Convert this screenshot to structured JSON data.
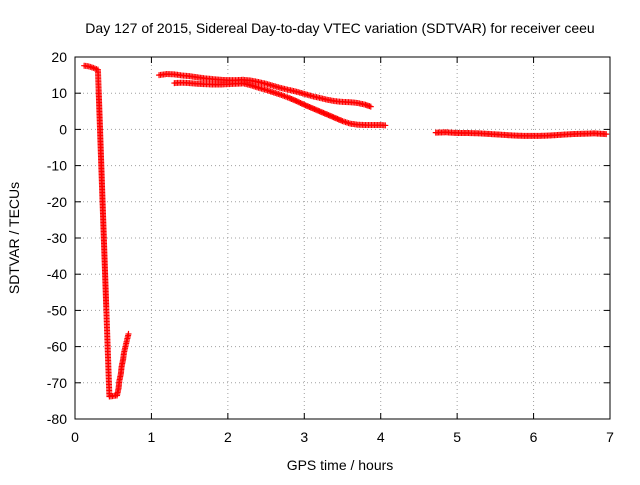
{
  "chart_data": {
    "type": "scatter",
    "title": "Day 127 of 2015, Sidereal Day-to-day VTEC variation (SDTVAR) for receiver ceeu",
    "xlabel": "GPS time / hours",
    "ylabel": "SDTVAR / TECUs",
    "xlim": [
      0,
      7
    ],
    "ylim": [
      -80,
      20
    ],
    "xticks": [
      0,
      1,
      2,
      3,
      4,
      5,
      6,
      7
    ],
    "yticks": [
      -80,
      -70,
      -60,
      -50,
      -40,
      -30,
      -20,
      -10,
      0,
      10,
      20
    ],
    "grid": true,
    "marker": "+",
    "color": "#ff0000",
    "series": [
      {
        "values": [
          [
            0.12,
            17.6
          ],
          [
            0.18,
            17.4
          ],
          [
            0.24,
            17.0
          ],
          [
            0.3,
            16.5
          ],
          [
            0.45,
            -73.8
          ],
          [
            0.55,
            -73.5
          ],
          [
            0.57,
            -71.5
          ],
          [
            0.58,
            -69.5
          ],
          [
            0.6,
            -67.5
          ],
          [
            0.61,
            -65.5
          ],
          [
            0.63,
            -63.5
          ],
          [
            0.64,
            -61.8
          ],
          [
            0.66,
            -60.0
          ],
          [
            0.68,
            -58.2
          ],
          [
            0.7,
            -56.5
          ],
          [
            1.1,
            15.0
          ],
          [
            1.2,
            15.3
          ],
          [
            1.3,
            15.2
          ],
          [
            1.4,
            14.9
          ],
          [
            1.5,
            14.7
          ],
          [
            1.6,
            14.4
          ],
          [
            1.7,
            14.1
          ],
          [
            1.8,
            13.9
          ],
          [
            1.9,
            13.7
          ],
          [
            2.0,
            13.6
          ],
          [
            2.1,
            13.6
          ],
          [
            2.2,
            13.7
          ],
          [
            2.3,
            13.5
          ],
          [
            2.4,
            13.1
          ],
          [
            2.5,
            12.6
          ],
          [
            2.6,
            12.0
          ],
          [
            2.7,
            11.4
          ],
          [
            2.8,
            10.9
          ],
          [
            2.9,
            10.4
          ],
          [
            3.0,
            9.8
          ],
          [
            3.1,
            9.2
          ],
          [
            3.2,
            8.7
          ],
          [
            3.3,
            8.2
          ],
          [
            3.4,
            7.8
          ],
          [
            3.5,
            7.6
          ],
          [
            3.6,
            7.5
          ],
          [
            3.7,
            7.3
          ],
          [
            3.8,
            6.8
          ],
          [
            3.87,
            6.3
          ],
          [
            1.3,
            12.8
          ],
          [
            1.4,
            12.9
          ],
          [
            1.5,
            12.8
          ],
          [
            1.6,
            12.6
          ],
          [
            1.7,
            12.5
          ],
          [
            1.8,
            12.4
          ],
          [
            1.9,
            12.4
          ],
          [
            2.0,
            12.5
          ],
          [
            2.1,
            12.6
          ],
          [
            2.2,
            12.7
          ],
          [
            2.3,
            12.2
          ],
          [
            2.4,
            11.5
          ],
          [
            2.5,
            10.9
          ],
          [
            2.6,
            10.2
          ],
          [
            2.7,
            9.5
          ],
          [
            2.8,
            8.7
          ],
          [
            2.9,
            7.8
          ],
          [
            3.0,
            6.8
          ],
          [
            3.1,
            5.9
          ],
          [
            3.2,
            5.0
          ],
          [
            3.3,
            4.1
          ],
          [
            3.4,
            3.2
          ],
          [
            3.5,
            2.3
          ],
          [
            3.6,
            1.6
          ],
          [
            3.7,
            1.3
          ],
          [
            3.8,
            1.2
          ],
          [
            3.9,
            1.2
          ],
          [
            4.0,
            1.2
          ],
          [
            4.06,
            1.1
          ],
          [
            4.72,
            -0.9
          ],
          [
            4.85,
            -0.8
          ],
          [
            5.0,
            -1.0
          ],
          [
            5.15,
            -1.0
          ],
          [
            5.3,
            -1.1
          ],
          [
            5.45,
            -1.3
          ],
          [
            5.6,
            -1.5
          ],
          [
            5.75,
            -1.7
          ],
          [
            5.9,
            -1.8
          ],
          [
            6.05,
            -1.8
          ],
          [
            6.2,
            -1.7
          ],
          [
            6.35,
            -1.5
          ],
          [
            6.5,
            -1.3
          ],
          [
            6.65,
            -1.2
          ],
          [
            6.8,
            -1.1
          ],
          [
            6.95,
            -1.3
          ]
        ]
      }
    ]
  }
}
